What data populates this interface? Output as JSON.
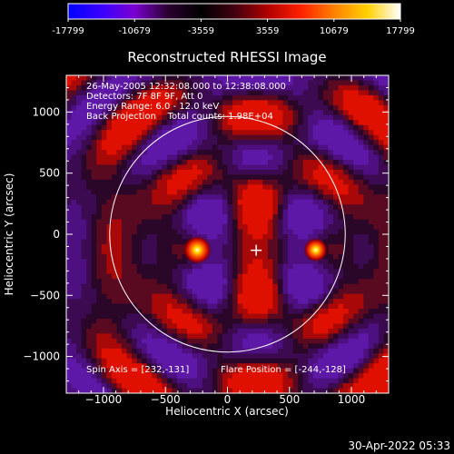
{
  "chart_data": {
    "type": "heatmap",
    "title": "Reconstructed RHESSI Image",
    "xlabel": "Heliocentric X (arcsec)",
    "ylabel": "Heliocentric Y (arcsec)",
    "xlim": [
      -1300,
      1300
    ],
    "ylim": [
      -1300,
      1300
    ],
    "x_ticks": [
      -1000,
      -500,
      0,
      500,
      1000
    ],
    "y_ticks": [
      1000,
      500,
      0,
      -500,
      -1000
    ],
    "colorbar": {
      "min": -17799,
      "max": 17799,
      "tick_labels": [
        "-17799",
        "-10679",
        "-3559",
        "3559",
        "10679",
        "17799"
      ],
      "colors": [
        "#0000ff",
        "#3a00ff",
        "#7a00d0",
        "#2a0030",
        "#000000",
        "#400010",
        "#b00000",
        "#ff2000",
        "#ff8000",
        "#ffd000",
        "#ffffff"
      ]
    },
    "info_lines": [
      "26-May-2005 12:32:08.000 to 12:38:08.000",
      "Detectors: 7F 8F 9F, Att 0",
      "Energy Range: 6.0 - 12.0 keV",
      "Back Projection    Total counts: 1.98E+04"
    ],
    "sources": [
      {
        "x": -244,
        "y": -128,
        "value": 17799
      },
      {
        "x": 712,
        "y": -128,
        "value": 15000
      }
    ],
    "solar_limb": {
      "center": [
        0,
        0
      ],
      "radius_arcsec": 950
    },
    "spin_axis": {
      "x": 232,
      "y": -131
    },
    "flare_position": {
      "x": -244,
      "y": -128
    },
    "footer_left": "Spin Axis = [232,-131]",
    "footer_right": "Flare Position = [-244,-128]"
  },
  "timestamp": "30-Apr-2022 05:33"
}
